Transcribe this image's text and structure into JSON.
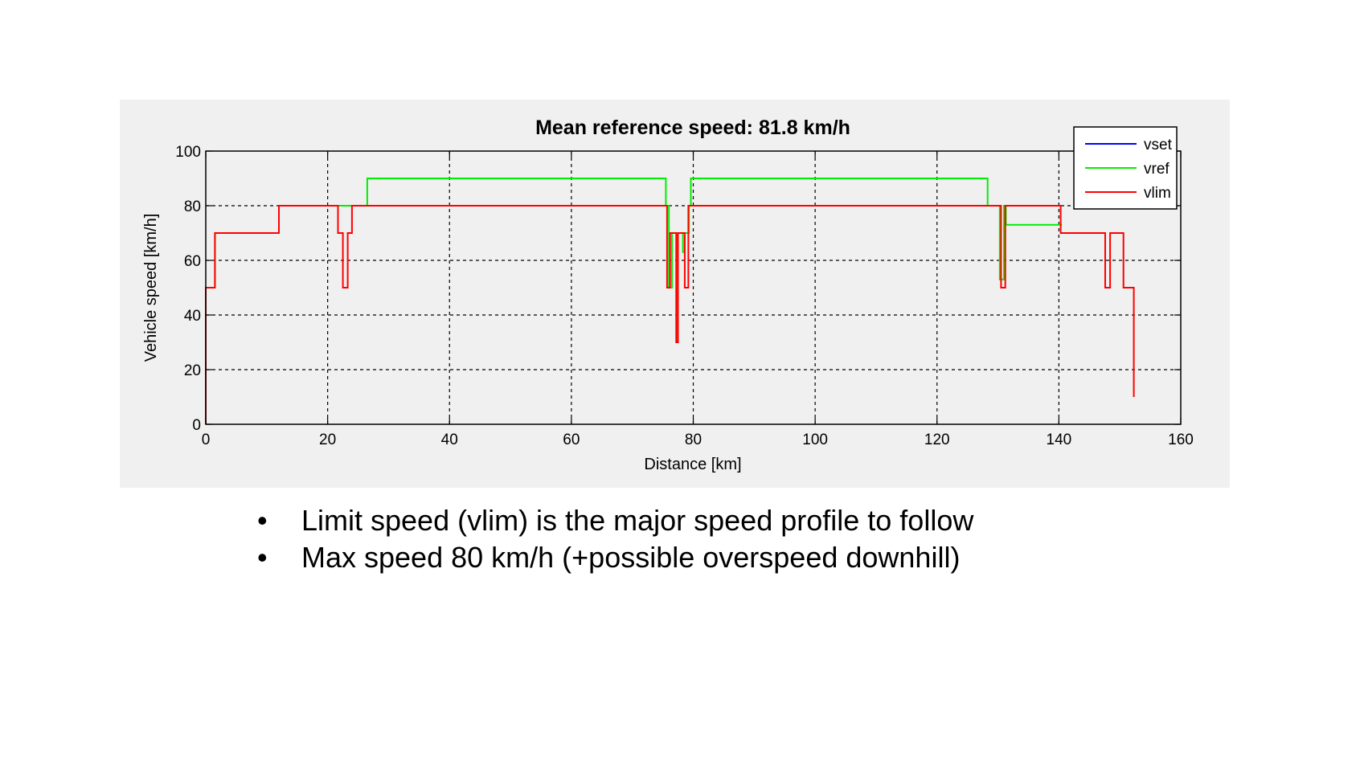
{
  "chart_data": {
    "type": "line",
    "title": "Mean reference speed: 81.8 km/h",
    "xlabel": "Distance [km]",
    "ylabel": "Vehicle speed [km/h]",
    "xlim": [
      0,
      160
    ],
    "ylim": [
      0,
      100
    ],
    "xticks": [
      0,
      20,
      40,
      60,
      80,
      100,
      120,
      140,
      160
    ],
    "yticks": [
      0,
      20,
      40,
      60,
      80,
      100
    ],
    "grid": true,
    "legend_position": "top-right",
    "series": [
      {
        "name": "vset",
        "color": "#0000ff",
        "x": [],
        "y": []
      },
      {
        "name": "vref",
        "color": "#00ee00",
        "x": [
          0,
          0,
          0,
          1.5,
          1.5,
          12,
          12,
          26.5,
          26.5,
          75.5,
          75.5,
          76,
          76,
          76.5,
          76.5,
          77.3,
          77.3,
          77.5,
          77.5,
          78.3,
          78.3,
          78.6,
          78.6,
          79.3,
          79.3,
          79.6,
          79.6,
          128.3,
          128.3,
          130.3,
          130.3,
          131,
          131,
          131.3,
          131.3,
          140.5
        ],
        "y": [
          0,
          50,
          50,
          50,
          70,
          70,
          80,
          80,
          90,
          90,
          80,
          80,
          50,
          50,
          70,
          70,
          30,
          30,
          70,
          70,
          63,
          63,
          70,
          70,
          80,
          80,
          90,
          90,
          80,
          80,
          53,
          53,
          80,
          80,
          73,
          73
        ]
      },
      {
        "name": "vlim",
        "color": "#ff0000",
        "x": [
          0,
          0,
          1.5,
          1.5,
          12,
          12,
          21.7,
          21.7,
          22.5,
          22.5,
          23.3,
          23.3,
          24,
          24,
          24.8,
          24.8,
          75.7,
          75.7,
          76.2,
          76.2,
          77.2,
          77.2,
          77.5,
          77.5,
          78.6,
          78.6,
          79.2,
          79.2,
          130.5,
          130.5,
          131.2,
          131.2,
          140.3,
          140.3,
          147.6,
          147.6,
          148.4,
          148.4,
          150.6,
          150.6,
          152.3,
          152.3
        ],
        "y": [
          0,
          50,
          50,
          70,
          70,
          80,
          80,
          70,
          70,
          50,
          50,
          70,
          70,
          80,
          80,
          80,
          80,
          50,
          50,
          70,
          70,
          30,
          30,
          70,
          70,
          50,
          50,
          80,
          80,
          50,
          50,
          80,
          80,
          70,
          70,
          50,
          50,
          70,
          70,
          50,
          50,
          10
        ]
      }
    ]
  },
  "bullets": [
    "Limit speed (vlim) is the major speed profile to follow",
    "Max speed 80 km/h (+possible overspeed downhill)"
  ],
  "bullet_glyph": "•"
}
